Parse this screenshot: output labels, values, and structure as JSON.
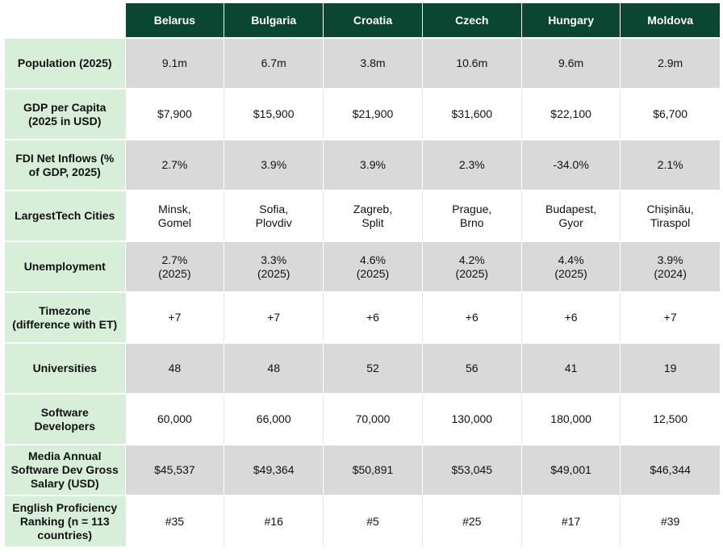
{
  "countries": [
    "Belarus",
    "Bulgaria",
    "Croatia",
    "Czech",
    "Hungary",
    "Moldova"
  ],
  "rows": [
    {
      "label": "Population (2025)",
      "values": [
        "9.1m",
        "6.7m",
        "3.8m",
        "10.6m",
        "9.6m",
        "2.9m"
      ]
    },
    {
      "label": "GDP per Capita\n(2025 in USD)",
      "values": [
        "$7,900",
        "$15,900",
        "$21,900",
        "$31,600",
        "$22,100",
        "$6,700"
      ]
    },
    {
      "label": "FDI Net Inflows (%\nof GDP, 2025)",
      "values": [
        "2.7%",
        "3.9%",
        "3.9%",
        "2.3%",
        "-34.0%",
        "2.1%"
      ]
    },
    {
      "label": "LargestTech Cities",
      "values": [
        "Minsk,\nGomel",
        "Sofia,\nPlovdiv",
        "Zagreb,\nSplit",
        "Prague,\nBrno",
        "Budapest,\nGyor",
        "Chișinău,\nTiraspol"
      ]
    },
    {
      "label": "Unemployment",
      "values": [
        "2.7%\n(2025)",
        "3.3%\n(2025)",
        "4.6%\n(2025)",
        "4.2%\n(2025)",
        "4.4%\n(2025)",
        "3.9%\n(2024)"
      ]
    },
    {
      "label": "Timezone\n(difference with ET)",
      "values": [
        "+7",
        "+7",
        "+6",
        "+6",
        "+6",
        "+7"
      ]
    },
    {
      "label": "Universities",
      "values": [
        "48",
        "48",
        "52",
        "56",
        "41",
        "19"
      ]
    },
    {
      "label": "Software\nDevelopers",
      "values": [
        "60,000",
        "66,000",
        "70,000",
        "130,000",
        "180,000",
        "12,500"
      ]
    },
    {
      "label": "Media Annual\nSoftware Dev Gross\nSalary (USD)",
      "values": [
        "$45,537",
        "$49,364",
        "$50,891",
        "$53,045",
        "$49,001",
        "$46,344"
      ]
    },
    {
      "label": "English Proficiency\nRanking (n = 113\ncountries)",
      "values": [
        "#35",
        "#16",
        "#5",
        "#25",
        "#17",
        "#39"
      ]
    }
  ]
}
